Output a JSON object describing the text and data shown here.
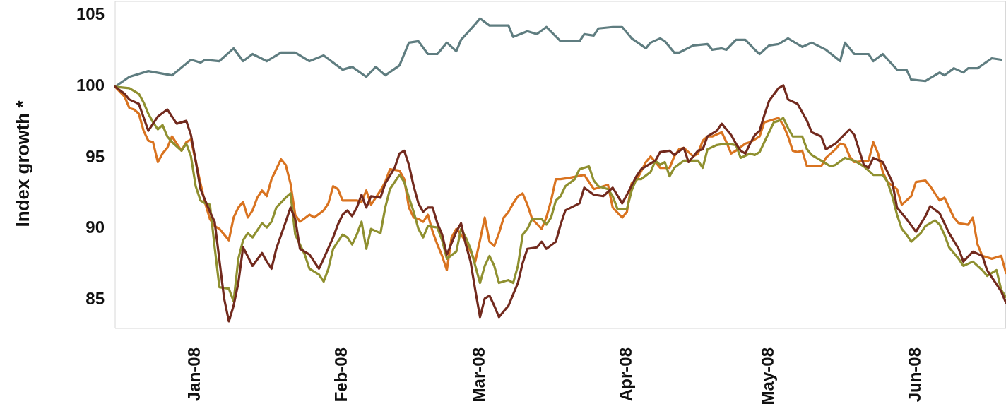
{
  "chart_data": {
    "type": "line",
    "ylabel": "Index growth *",
    "xlim": [
      "2007-12-15",
      "2008-06-20"
    ],
    "ylim": [
      83,
      106
    ],
    "yticks": [
      85,
      90,
      95,
      100,
      105
    ],
    "xticks": [
      {
        "value": "2008-01-01",
        "label": "Jan-08"
      },
      {
        "value": "2008-02-01",
        "label": "Feb-08"
      },
      {
        "value": "2008-03-01",
        "label": "Mar-08"
      },
      {
        "value": "2008-04-01",
        "label": "Apr-08"
      },
      {
        "value": "2008-05-01",
        "label": "May-08"
      },
      {
        "value": "2008-06-01",
        "label": "Jun-08"
      }
    ],
    "series": [
      {
        "color": "#5f7d80",
        "x": [
          "2007-12-15",
          "2007-12-18",
          "2007-12-22",
          "2007-12-27",
          "2007-12-31",
          "2008-01-02",
          "2008-01-03",
          "2008-01-06",
          "2008-01-09",
          "2008-01-11",
          "2008-01-13",
          "2008-01-16",
          "2008-01-19",
          "2008-01-22",
          "2008-01-25",
          "2008-01-28",
          "2008-02-01",
          "2008-02-03",
          "2008-02-06",
          "2008-02-08",
          "2008-02-10",
          "2008-02-13",
          "2008-02-15",
          "2008-02-17",
          "2008-02-19",
          "2008-02-21",
          "2008-02-23",
          "2008-02-25",
          "2008-02-26",
          "2008-02-29",
          "2008-03-01",
          "2008-03-03",
          "2008-03-07",
          "2008-03-08",
          "2008-03-11",
          "2008-03-13",
          "2008-03-15",
          "2008-03-18",
          "2008-03-22",
          "2008-03-23",
          "2008-03-25",
          "2008-03-26",
          "2008-03-29",
          "2008-03-31",
          "2008-04-02",
          "2008-04-05",
          "2008-04-06",
          "2008-04-08",
          "2008-04-09",
          "2008-04-11",
          "2008-04-12",
          "2008-04-15",
          "2008-04-18",
          "2008-04-19",
          "2008-04-21",
          "2008-04-22",
          "2008-04-24",
          "2008-04-26",
          "2008-04-28",
          "2008-04-29",
          "2008-05-01",
          "2008-05-03",
          "2008-05-05",
          "2008-05-08",
          "2008-05-10",
          "2008-05-13",
          "2008-05-16",
          "2008-05-17",
          "2008-05-19",
          "2008-05-22",
          "2008-05-23",
          "2008-05-25",
          "2008-05-28",
          "2008-05-30",
          "2008-05-31",
          "2008-06-03",
          "2008-06-06",
          "2008-06-07",
          "2008-06-09",
          "2008-06-11",
          "2008-06-12",
          "2008-06-14",
          "2008-06-17",
          "2008-06-19"
        ],
        "values": [
          100.0,
          100.7,
          101.1,
          100.8,
          101.9,
          101.7,
          101.9,
          101.8,
          102.7,
          101.8,
          102.3,
          101.8,
          102.4,
          102.4,
          101.8,
          102.2,
          101.2,
          101.4,
          100.7,
          101.4,
          100.8,
          101.5,
          103.1,
          103.2,
          102.3,
          102.3,
          103.1,
          102.5,
          103.3,
          104.4,
          104.8,
          104.3,
          104.3,
          103.5,
          103.9,
          103.7,
          104.2,
          103.2,
          103.2,
          103.7,
          103.6,
          104.1,
          104.2,
          104.2,
          103.4,
          102.7,
          103.1,
          103.4,
          103.2,
          102.4,
          102.4,
          102.9,
          103.0,
          102.6,
          102.7,
          102.6,
          103.3,
          103.3,
          102.6,
          102.3,
          102.9,
          103.0,
          103.4,
          102.8,
          103.1,
          102.6,
          101.8,
          103.1,
          102.3,
          102.3,
          101.8,
          102.3,
          101.2,
          101.2,
          100.5,
          100.4,
          101.0,
          100.8,
          101.3,
          101.0,
          101.3,
          101.3,
          102.0,
          101.9
        ]
      },
      {
        "color": "#d97320",
        "x": [
          "2007-12-15",
          "2007-12-17",
          "2007-12-18",
          "2007-12-19",
          "2007-12-20",
          "2007-12-21",
          "2007-12-22",
          "2007-12-23",
          "2007-12-24",
          "2007-12-25",
          "2007-12-26",
          "2007-12-27",
          "2007-12-28",
          "2007-12-29",
          "2007-12-30",
          "2007-12-31",
          "2008-01-02",
          "2008-01-03",
          "2008-01-04",
          "2008-01-05",
          "2008-01-06",
          "2008-01-07",
          "2008-01-08",
          "2008-01-09",
          "2008-01-10",
          "2008-01-11",
          "2008-01-12",
          "2008-01-13",
          "2008-01-14",
          "2008-01-15",
          "2008-01-16",
          "2008-01-17",
          "2008-01-18",
          "2008-01-19",
          "2008-01-20",
          "2008-01-21",
          "2008-01-22",
          "2008-01-23",
          "2008-01-25",
          "2008-01-26",
          "2008-01-28",
          "2008-01-29",
          "2008-01-30",
          "2008-01-31",
          "2008-02-01",
          "2008-02-04",
          "2008-02-05",
          "2008-02-06",
          "2008-02-07",
          "2008-02-09",
          "2008-02-10",
          "2008-02-11",
          "2008-02-13",
          "2008-02-14",
          "2008-02-15",
          "2008-02-16",
          "2008-02-17",
          "2008-02-18",
          "2008-02-19",
          "2008-02-20",
          "2008-02-21",
          "2008-02-22",
          "2008-02-23",
          "2008-02-24",
          "2008-02-25",
          "2008-02-26",
          "2008-02-27",
          "2008-02-28",
          "2008-02-29",
          "2008-03-01",
          "2008-03-02",
          "2008-03-03",
          "2008-03-04",
          "2008-03-05",
          "2008-03-06",
          "2008-03-07",
          "2008-03-08",
          "2008-03-09",
          "2008-03-10",
          "2008-03-11",
          "2008-03-12",
          "2008-03-14",
          "2008-03-15",
          "2008-03-16",
          "2008-03-17",
          "2008-03-18",
          "2008-03-20",
          "2008-03-23",
          "2008-03-25",
          "2008-03-28",
          "2008-03-29",
          "2008-03-31",
          "2008-04-01",
          "2008-04-02",
          "2008-04-03",
          "2008-04-05",
          "2008-04-06",
          "2008-04-08",
          "2008-04-10",
          "2008-04-11",
          "2008-04-12",
          "2008-04-13",
          "2008-04-15",
          "2008-04-16",
          "2008-04-17",
          "2008-04-18",
          "2008-04-19",
          "2008-04-21",
          "2008-04-22",
          "2008-04-23",
          "2008-04-24",
          "2008-04-26",
          "2008-04-27",
          "2008-04-28",
          "2008-04-29",
          "2008-04-30",
          "2008-05-02",
          "2008-05-03",
          "2008-05-04",
          "2008-05-05",
          "2008-05-06",
          "2008-05-07",
          "2008-05-08",
          "2008-05-09",
          "2008-05-12",
          "2008-05-13",
          "2008-05-15",
          "2008-05-16",
          "2008-05-17",
          "2008-05-18",
          "2008-05-19",
          "2008-05-22",
          "2008-05-23",
          "2008-05-24",
          "2008-05-25",
          "2008-05-26",
          "2008-05-28",
          "2008-05-29",
          "2008-05-31",
          "2008-06-01",
          "2008-06-03",
          "2008-06-04",
          "2008-06-06",
          "2008-06-07",
          "2008-06-09",
          "2008-06-10",
          "2008-06-12",
          "2008-06-13",
          "2008-06-14",
          "2008-06-15",
          "2008-06-17",
          "2008-06-19",
          "2008-06-20"
        ],
        "values": [
          100,
          99.3,
          98.5,
          98.4,
          98.1,
          96.9,
          96.2,
          96.1,
          94.7,
          95.3,
          95.7,
          96.5,
          96.0,
          95.5,
          96.1,
          96.3,
          93.2,
          91.8,
          90.7,
          90.2,
          90.0,
          89.6,
          89.2,
          90.8,
          91.5,
          91.9,
          90.8,
          91.3,
          92.2,
          92.7,
          92.3,
          93.5,
          94.2,
          94.9,
          94.5,
          93.2,
          91.0,
          90.5,
          91.0,
          90.8,
          91.3,
          91.8,
          93.0,
          92.8,
          92.0,
          92.0,
          91.9,
          92.7,
          91.7,
          92.7,
          93.3,
          94.2,
          94.1,
          93.5,
          91.5,
          90.8,
          90.7,
          90.5,
          91.0,
          89.8,
          88.9,
          88.1,
          87.1,
          89.4,
          90.0,
          89.6,
          89.1,
          88.4,
          87.7,
          89.2,
          90.8,
          89.1,
          88.8,
          89.7,
          90.8,
          91.2,
          91.8,
          92.3,
          92.5,
          91.7,
          90.7,
          90.0,
          90.8,
          92.0,
          93.5,
          93.5,
          93.6,
          93.8,
          92.8,
          93.1,
          91.5,
          90.8,
          91.2,
          93.2,
          93.4,
          94.7,
          95.1,
          94.3,
          94.3,
          95.1,
          95.6,
          95.7,
          95.1,
          95.3,
          96.2,
          96.5,
          96.5,
          96.8,
          96.1,
          95.3,
          95.5,
          96.0,
          96.1,
          96.3,
          96.5,
          97.5,
          97.7,
          97.8,
          97.3,
          96.5,
          95.5,
          95.4,
          95.5,
          94.4,
          94.4,
          95.0,
          95.6,
          96.0,
          95.9,
          95.1,
          94.7,
          94.8,
          96.1,
          95.3,
          94.0,
          93.3,
          92.8,
          91.7,
          92.3,
          93.3,
          93.4,
          93.0,
          92.0,
          92.2,
          90.8,
          90.4,
          90.3,
          90.8,
          88.9,
          88.1,
          87.9,
          88.1,
          86.9
        ]
      },
      {
        "color": "#8f9030",
        "x": [
          "2007-12-15",
          "2007-12-18",
          "2007-12-20",
          "2007-12-21",
          "2007-12-22",
          "2007-12-23",
          "2007-12-24",
          "2007-12-25",
          "2007-12-26",
          "2007-12-27",
          "2007-12-29",
          "2007-12-30",
          "2007-12-31",
          "2008-01-01",
          "2008-01-02",
          "2008-01-03",
          "2008-01-04",
          "2008-01-05",
          "2008-01-06",
          "2008-01-08",
          "2008-01-09",
          "2008-01-10",
          "2008-01-11",
          "2008-01-12",
          "2008-01-13",
          "2008-01-15",
          "2008-01-16",
          "2008-01-17",
          "2008-01-18",
          "2008-01-20",
          "2008-01-21",
          "2008-01-22",
          "2008-01-23",
          "2008-01-24",
          "2008-01-25",
          "2008-01-27",
          "2008-01-28",
          "2008-01-29",
          "2008-01-30",
          "2008-01-31",
          "2008-02-01",
          "2008-02-02",
          "2008-02-03",
          "2008-02-04",
          "2008-02-05",
          "2008-02-06",
          "2008-02-07",
          "2008-02-09",
          "2008-02-10",
          "2008-02-11",
          "2008-02-13",
          "2008-02-14",
          "2008-02-15",
          "2008-02-16",
          "2008-02-17",
          "2008-02-18",
          "2008-02-19",
          "2008-02-21",
          "2008-02-22",
          "2008-02-23",
          "2008-02-25",
          "2008-02-26",
          "2008-02-27",
          "2008-02-28",
          "2008-02-29",
          "2008-03-01",
          "2008-03-02",
          "2008-03-03",
          "2008-03-04",
          "2008-03-05",
          "2008-03-07",
          "2008-03-08",
          "2008-03-09",
          "2008-03-10",
          "2008-03-11",
          "2008-03-12",
          "2008-03-14",
          "2008-03-15",
          "2008-03-16",
          "2008-03-17",
          "2008-03-18",
          "2008-03-19",
          "2008-03-21",
          "2008-03-22",
          "2008-03-24",
          "2008-03-25",
          "2008-03-26",
          "2008-03-28",
          "2008-03-29",
          "2008-03-30",
          "2008-04-01",
          "2008-04-02",
          "2008-04-03",
          "2008-04-04",
          "2008-04-06",
          "2008-04-07",
          "2008-04-08",
          "2008-04-09",
          "2008-04-10",
          "2008-04-11",
          "2008-04-13",
          "2008-04-14",
          "2008-04-16",
          "2008-04-17",
          "2008-04-18",
          "2008-04-20",
          "2008-04-22",
          "2008-04-24",
          "2008-04-25",
          "2008-04-27",
          "2008-04-28",
          "2008-04-29",
          "2008-04-30",
          "2008-05-01",
          "2008-05-02",
          "2008-05-03",
          "2008-05-04",
          "2008-05-05",
          "2008-05-06",
          "2008-05-08",
          "2008-05-09",
          "2008-05-10",
          "2008-05-12",
          "2008-05-14",
          "2008-05-15",
          "2008-05-17",
          "2008-05-19",
          "2008-05-21",
          "2008-05-23",
          "2008-05-25",
          "2008-05-26",
          "2008-05-27",
          "2008-05-28",
          "2008-05-29",
          "2008-05-30",
          "2008-05-31",
          "2008-06-02",
          "2008-06-03",
          "2008-06-05",
          "2008-06-06",
          "2008-06-07",
          "2008-06-08",
          "2008-06-10",
          "2008-06-11",
          "2008-06-13",
          "2008-06-15",
          "2008-06-16",
          "2008-06-18",
          "2008-06-19",
          "2008-06-20"
        ],
        "values": [
          100,
          99.9,
          99.5,
          98.9,
          98.1,
          97.5,
          97.0,
          97.3,
          96.5,
          96.1,
          95.5,
          96.0,
          95.1,
          93.0,
          92.0,
          91.8,
          91.7,
          88.7,
          85.9,
          85.8,
          84.9,
          87.9,
          89.2,
          89.7,
          89.4,
          90.4,
          90.1,
          90.5,
          91.5,
          92.2,
          92.5,
          89.6,
          88.9,
          88.2,
          87.2,
          86.8,
          86.3,
          87.2,
          88.6,
          89.1,
          89.6,
          89.4,
          88.9,
          89.6,
          90.5,
          88.6,
          90.0,
          89.7,
          91.5,
          92.8,
          93.8,
          93.3,
          92.2,
          91.2,
          90.0,
          89.4,
          90.2,
          90.1,
          89.2,
          87.9,
          88.4,
          90.0,
          89.4,
          88.6,
          87.4,
          86.2,
          87.4,
          88.1,
          87.4,
          86.2,
          86.4,
          86.2,
          87.4,
          89.6,
          90.0,
          90.7,
          90.7,
          90.3,
          90.8,
          92.0,
          92.3,
          93.0,
          93.5,
          94.2,
          94.4,
          93.4,
          93.0,
          92.8,
          92.3,
          91.4,
          91.4,
          92.7,
          93.5,
          93.5,
          94.0,
          94.8,
          94.5,
          94.7,
          93.7,
          94.3,
          94.8,
          94.8,
          94.8,
          94.3,
          95.6,
          95.9,
          96.0,
          95.9,
          95.0,
          95.3,
          95.2,
          95.4,
          96.1,
          96.8,
          97.5,
          97.6,
          97.8,
          97.1,
          96.5,
          96.5,
          95.6,
          95.2,
          94.8,
          94.4,
          94.5,
          95.0,
          94.8,
          94.4,
          93.8,
          93.8,
          93.3,
          92.3,
          91.0,
          90.0,
          89.6,
          89.1,
          89.7,
          90.2,
          90.6,
          90.3,
          89.6,
          88.7,
          87.9,
          87.4,
          87.7,
          87.1,
          86.7,
          87.1,
          85.7,
          85.2
        ]
      },
      {
        "color": "#722a1e",
        "x": [
          "2007-12-15",
          "2007-12-17",
          "2007-12-18",
          "2007-12-20",
          "2007-12-22",
          "2007-12-24",
          "2007-12-26",
          "2007-12-28",
          "2007-12-30",
          "2007-12-31",
          "2008-01-01",
          "2008-01-02",
          "2008-01-04",
          "2008-01-05",
          "2008-01-07",
          "2008-01-08",
          "2008-01-09",
          "2008-01-10",
          "2008-01-11",
          "2008-01-13",
          "2008-01-15",
          "2008-01-16",
          "2008-01-17",
          "2008-01-18",
          "2008-01-20",
          "2008-01-21",
          "2008-01-22",
          "2008-01-23",
          "2008-01-25",
          "2008-01-27",
          "2008-01-28",
          "2008-01-30",
          "2008-01-31",
          "2008-02-01",
          "2008-02-02",
          "2008-02-03",
          "2008-02-04",
          "2008-02-05",
          "2008-02-06",
          "2008-02-07",
          "2008-02-09",
          "2008-02-10",
          "2008-02-12",
          "2008-02-13",
          "2008-02-14",
          "2008-02-15",
          "2008-02-16",
          "2008-02-17",
          "2008-02-18",
          "2008-02-19",
          "2008-02-20",
          "2008-02-21",
          "2008-02-22",
          "2008-02-23",
          "2008-02-25",
          "2008-02-26",
          "2008-02-27",
          "2008-02-28",
          "2008-02-29",
          "2008-03-01",
          "2008-03-02",
          "2008-03-03",
          "2008-03-04",
          "2008-03-05",
          "2008-03-07",
          "2008-03-08",
          "2008-03-09",
          "2008-03-10",
          "2008-03-11",
          "2008-03-13",
          "2008-03-14",
          "2008-03-15",
          "2008-03-17",
          "2008-03-18",
          "2008-03-19",
          "2008-03-22",
          "2008-03-23",
          "2008-03-25",
          "2008-03-27",
          "2008-03-29",
          "2008-03-31",
          "2008-04-01",
          "2008-04-03",
          "2008-04-04",
          "2008-04-07",
          "2008-04-08",
          "2008-04-10",
          "2008-04-11",
          "2008-04-13",
          "2008-04-14",
          "2008-04-16",
          "2008-04-17",
          "2008-04-18",
          "2008-04-20",
          "2008-04-21",
          "2008-04-23",
          "2008-04-24",
          "2008-04-25",
          "2008-04-26",
          "2008-04-27",
          "2008-04-28",
          "2008-04-29",
          "2008-04-30",
          "2008-05-01",
          "2008-05-03",
          "2008-05-04",
          "2008-05-05",
          "2008-05-07",
          "2008-05-09",
          "2008-05-10",
          "2008-05-12",
          "2008-05-13",
          "2008-05-15",
          "2008-05-18",
          "2008-05-19",
          "2008-05-21",
          "2008-05-22",
          "2008-05-23",
          "2008-05-25",
          "2008-05-27",
          "2008-05-28",
          "2008-05-30",
          "2008-06-01",
          "2008-06-03",
          "2008-06-04",
          "2008-06-06",
          "2008-06-08",
          "2008-06-10",
          "2008-06-11",
          "2008-06-13",
          "2008-06-15",
          "2008-06-16",
          "2008-06-19",
          "2008-06-20"
        ],
        "values": [
          100,
          99.5,
          99.1,
          98.8,
          96.9,
          97.9,
          98.4,
          97.4,
          97.6,
          96.6,
          94.8,
          92.8,
          91.2,
          90.5,
          85.1,
          83.5,
          84.6,
          86.2,
          88.7,
          87.4,
          88.3,
          87.7,
          87.2,
          88.6,
          90.5,
          91.5,
          90.7,
          88.6,
          88.2,
          87.2,
          87.9,
          89.4,
          90.3,
          91.0,
          91.3,
          90.9,
          91.5,
          92.4,
          91.5,
          92.3,
          92.2,
          93.2,
          94.3,
          95.3,
          95.5,
          94.5,
          93.0,
          91.8,
          91.2,
          91.5,
          91.5,
          90.4,
          89.6,
          88.2,
          89.8,
          90.4,
          88.9,
          87.7,
          85.7,
          83.8,
          85.1,
          85.3,
          84.6,
          83.8,
          84.6,
          85.4,
          86.2,
          87.6,
          88.6,
          88.7,
          89.1,
          88.6,
          89.1,
          90.3,
          91.3,
          91.8,
          92.9,
          92.4,
          92.3,
          92.9,
          91.8,
          92.4,
          93.7,
          94.2,
          94.8,
          95.4,
          95.5,
          95.2,
          95.7,
          94.7,
          95.5,
          95.6,
          96.5,
          96.9,
          97.4,
          96.6,
          96.0,
          95.5,
          95.3,
          96.0,
          96.6,
          96.9,
          98.0,
          99.0,
          99.9,
          100.1,
          99.1,
          98.8,
          97.6,
          96.8,
          96.5,
          95.6,
          96.0,
          97.0,
          96.6,
          94.5,
          94.3,
          95.0,
          94.7,
          93.3,
          91.5,
          90.7,
          89.8,
          90.9,
          91.6,
          91.1,
          89.7,
          88.6,
          87.7,
          88.4,
          88.1,
          87.1,
          85.6,
          84.8
        ]
      }
    ]
  }
}
